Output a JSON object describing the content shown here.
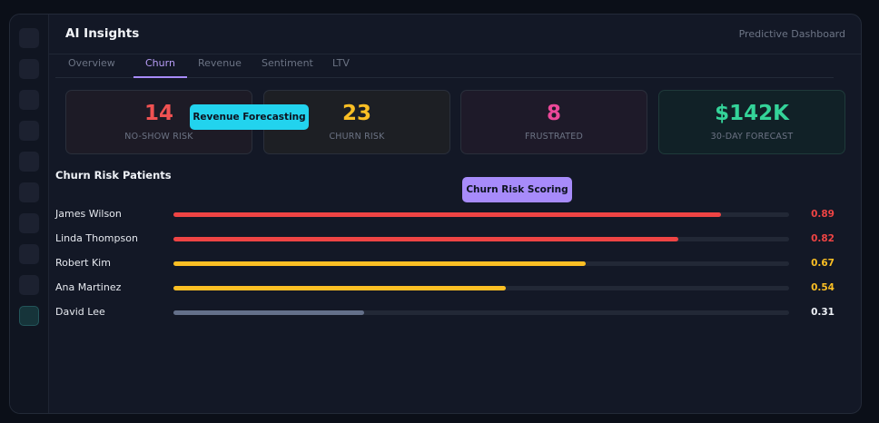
{
  "header": {
    "title": "AI Insights",
    "subtitle": "Predictive Dashboard"
  },
  "tabs": [
    {
      "label": "Overview",
      "active": false
    },
    {
      "label": "Churn",
      "active": true
    },
    {
      "label": "Revenue",
      "active": false
    },
    {
      "label": "Sentiment",
      "active": false
    },
    {
      "label": "LTV",
      "active": false
    }
  ],
  "metrics": [
    {
      "value": "14",
      "label": "NO-SHOW RISK",
      "color": "#f05252"
    },
    {
      "value": "23",
      "label": "CHURN RISK",
      "color": "#fbbf24"
    },
    {
      "value": "8",
      "label": "FRUSTRATED",
      "color": "#ec4899"
    },
    {
      "value": "$142K",
      "label": "30-DAY FORECAST",
      "color": "#34d399"
    }
  ],
  "tooltips": {
    "revenue": "Revenue Forecasting",
    "churn": "Churn Risk Scoring"
  },
  "churn_list": {
    "title": "Churn Risk Patients",
    "patients": [
      {
        "name": "James Wilson",
        "score": "0.89",
        "value": 0.89,
        "color": "#ef4444",
        "score_color": "#ef4444"
      },
      {
        "name": "Linda Thompson",
        "score": "0.82",
        "value": 0.82,
        "color": "#ef4444",
        "score_color": "#ef4444"
      },
      {
        "name": "Robert Kim",
        "score": "0.67",
        "value": 0.67,
        "color": "#fbbf24",
        "score_color": "#fbbf24"
      },
      {
        "name": "Ana Martinez",
        "score": "0.54",
        "value": 0.54,
        "color": "#fbbf24",
        "score_color": "#fbbf24"
      },
      {
        "name": "David Lee",
        "score": "0.31",
        "value": 0.31,
        "color": "#64708a",
        "score_color": "#eef1f6"
      }
    ]
  }
}
